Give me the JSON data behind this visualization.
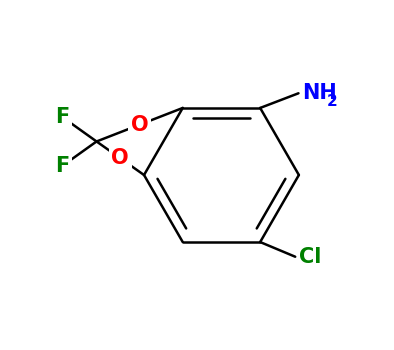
{
  "bg_color": "#ffffff",
  "bond_color": "#000000",
  "bond_width": 1.8,
  "atom_colors": {
    "O": "#ff0000",
    "F": "#008000",
    "Cl": "#008000",
    "N": "#0000ff",
    "C": "#000000"
  },
  "font_size_atoms": 15,
  "font_size_subscript": 11,
  "figsize": [
    3.94,
    3.5
  ],
  "dpi": 100
}
